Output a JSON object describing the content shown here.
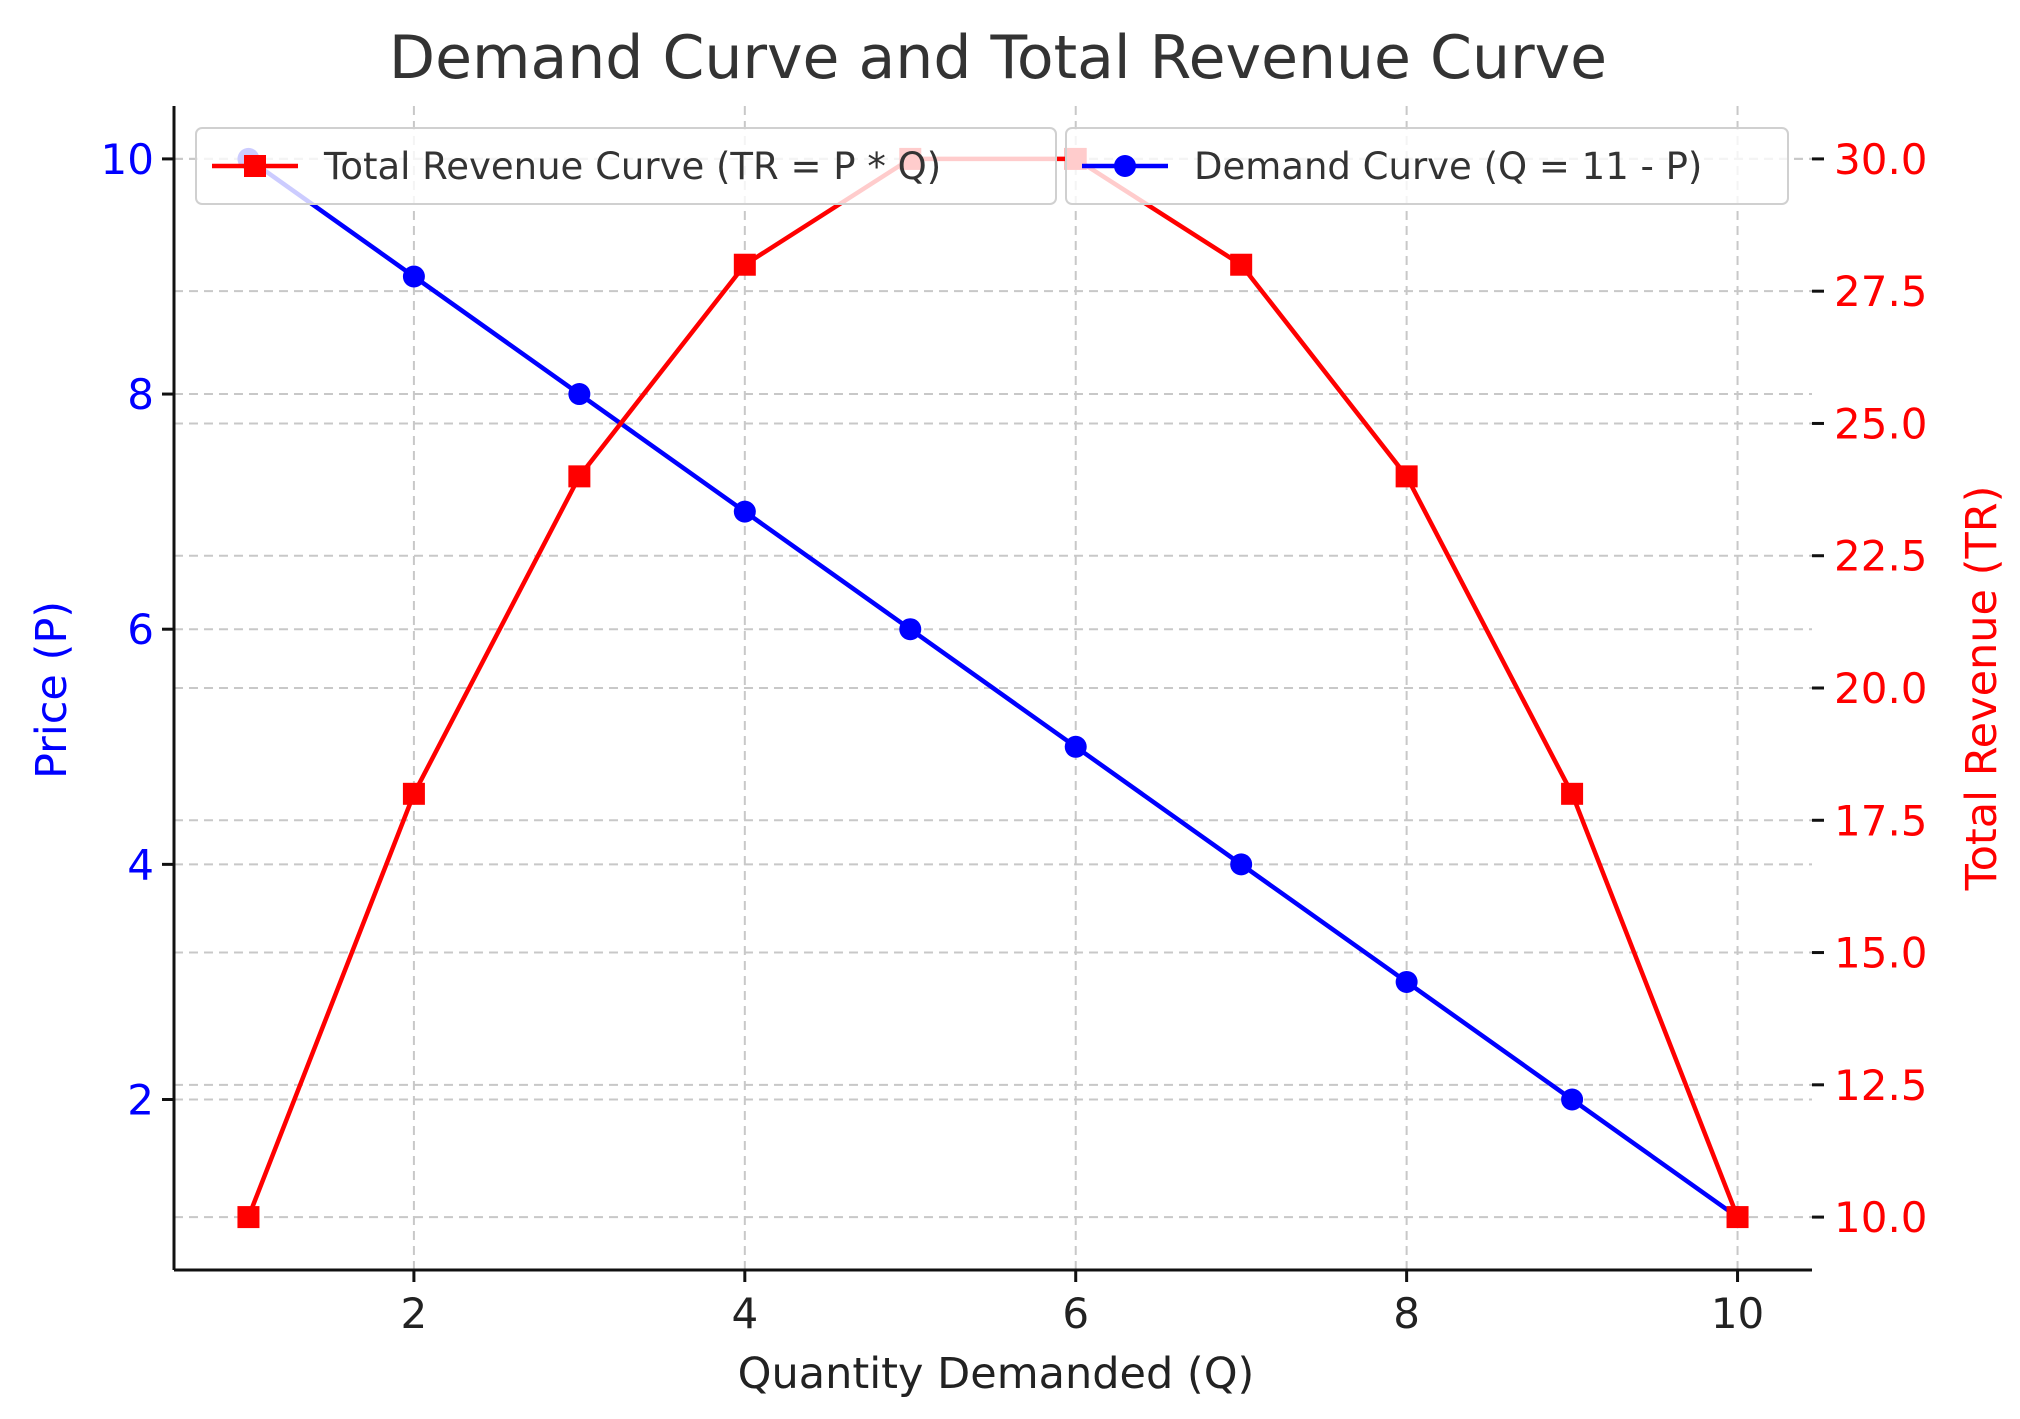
{
  "chart_data": {
    "type": "line",
    "title": "Demand Curve and Total Revenue Curve",
    "xlabel": "Quantity Demanded (Q)",
    "xlim": [
      0.55,
      10.45
    ],
    "x_ticks": [
      2,
      4,
      6,
      8,
      10
    ],
    "x_tick_labels": [
      "2",
      "4",
      "6",
      "8",
      "10"
    ],
    "grid": true,
    "x": [
      1,
      2,
      3,
      4,
      5,
      6,
      7,
      8,
      9,
      10
    ],
    "y_left": {
      "label": "Price (P)",
      "color": "#0000ff",
      "lim": [
        0.55,
        10.45
      ],
      "ticks": [
        2,
        4,
        6,
        8,
        10
      ],
      "tick_labels": [
        "2",
        "4",
        "6",
        "8",
        "10"
      ]
    },
    "y_right": {
      "label": "Total Revenue (TR)",
      "color": "#ff0000",
      "lim": [
        9.0,
        31.0
      ],
      "ticks": [
        10,
        12.5,
        15,
        17.5,
        20,
        22.5,
        25,
        27.5,
        30
      ],
      "tick_labels": [
        "10.0",
        "12.5",
        "15.0",
        "17.5",
        "20.0",
        "22.5",
        "25.0",
        "27.5",
        "30.0"
      ]
    },
    "series": [
      {
        "name": "Demand Curve (Q = 11 - P)",
        "axis": "left",
        "color": "#0000ff",
        "marker": "circle",
        "values": [
          10,
          9,
          8,
          7,
          6,
          5,
          4,
          3,
          2,
          1
        ]
      },
      {
        "name": "Total Revenue Curve (TR = P * Q)",
        "axis": "right",
        "color": "#ff0000",
        "marker": "square",
        "values": [
          10,
          18,
          24,
          28,
          30,
          30,
          28,
          24,
          18,
          10
        ]
      }
    ],
    "legends": [
      {
        "series": "Total Revenue Curve (TR = P * Q)",
        "placement": "upper-left"
      },
      {
        "series": "Demand Curve (Q = 11 - P)",
        "placement": "upper-right"
      }
    ]
  }
}
